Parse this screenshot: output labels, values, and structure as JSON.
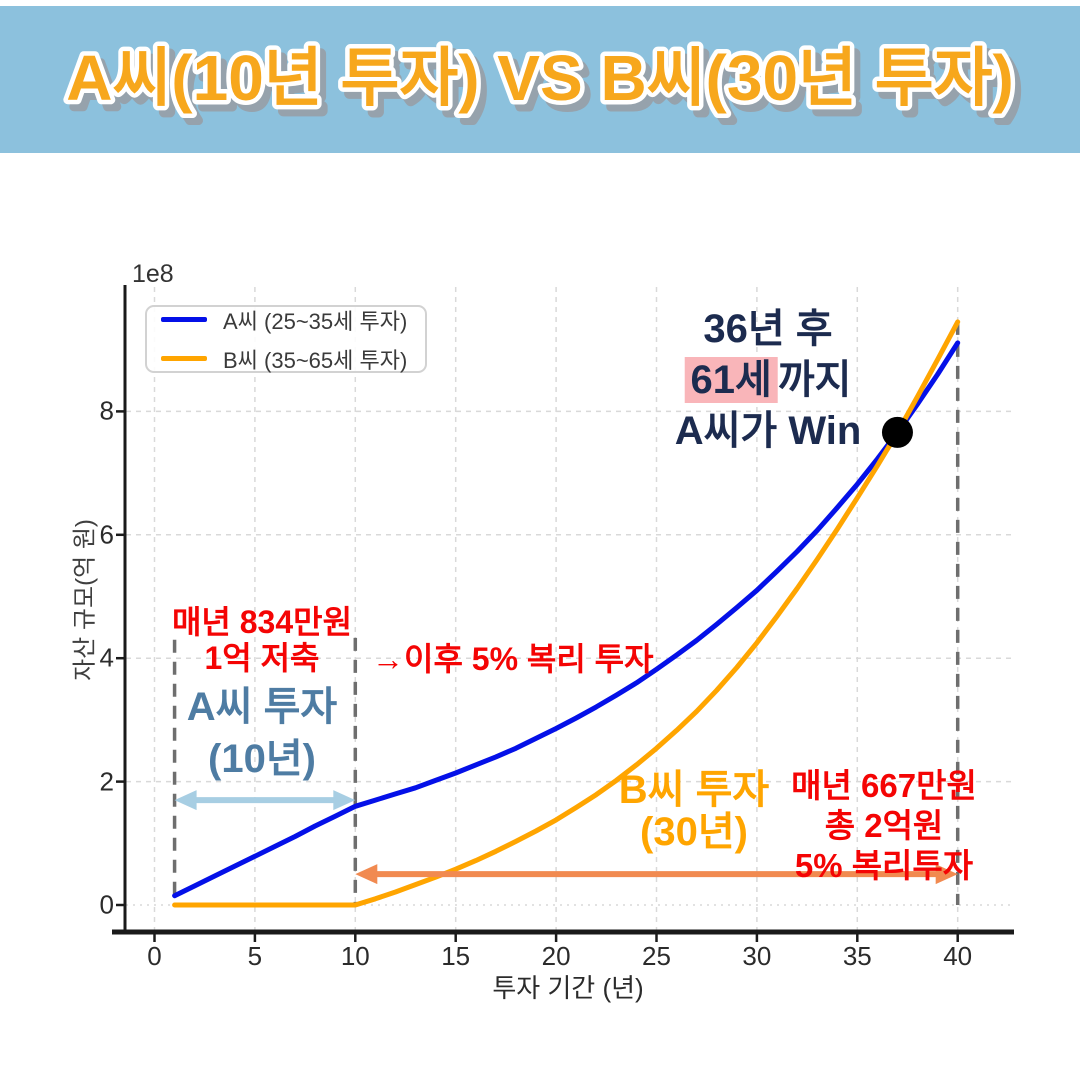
{
  "header": {
    "title": "A씨(10년 투자) VS B씨(30년 투자)",
    "bg_color": "#8cc1dd",
    "title_color": "#f7a71c",
    "title_outline_color": "#ffffff",
    "title_shadow_color": "#96a2ac"
  },
  "chart_data": {
    "type": "line",
    "xlabel": "투자 기간 (년)",
    "ylabel": "자산 규모(억 원)",
    "y_offset_label": "1e8",
    "x_ticks": [
      0,
      5,
      10,
      15,
      20,
      25,
      30,
      35,
      40
    ],
    "y_ticks": [
      0,
      2,
      4,
      6,
      8
    ],
    "xlim": [
      -1.4,
      42.7
    ],
    "ylim_1e8": [
      -0.45,
      10.05
    ],
    "grid": true,
    "legend_position": "upper-left",
    "x_start_year": 1,
    "series": [
      {
        "name": "A씨 (25~35세 투자)",
        "color": "#0410e8",
        "values_1e8": [
          0.15,
          0.31,
          0.47,
          0.63,
          0.79,
          0.95,
          1.11,
          1.28,
          1.44,
          1.6,
          1.7,
          1.8,
          1.9,
          2.02,
          2.14,
          2.27,
          2.4,
          2.54,
          2.7,
          2.86,
          3.03,
          3.21,
          3.4,
          3.6,
          3.82,
          4.05,
          4.29,
          4.55,
          4.82,
          5.1,
          5.41,
          5.73,
          6.07,
          6.44,
          6.82,
          7.23,
          7.66,
          8.12,
          8.6,
          9.11
        ]
      },
      {
        "name": "B씨 (35~65세 투자)",
        "color": "#ffa500",
        "values_1e8": [
          0,
          0,
          0,
          0,
          0,
          0,
          0,
          0,
          0,
          0,
          0.1,
          0.21,
          0.33,
          0.45,
          0.58,
          0.72,
          0.87,
          1.03,
          1.2,
          1.38,
          1.58,
          1.79,
          2.02,
          2.27,
          2.54,
          2.83,
          3.14,
          3.48,
          3.85,
          4.25,
          4.68,
          5.13,
          5.6,
          6.09,
          6.6,
          7.12,
          7.66,
          8.24,
          8.84,
          9.45
        ]
      }
    ],
    "crossover_point": {
      "x_year": 37,
      "y_1e8": 7.66,
      "marker_color": "#000000"
    },
    "reference_lines": [
      {
        "x_year": 1,
        "y_top_1e8": 4.3,
        "color": "#6e6e6e"
      },
      {
        "x_year": 10,
        "y_top_1e8": 4.33,
        "color": "#6e6e6e"
      },
      {
        "x_year": 40,
        "y_top_1e8": 9.45,
        "color": "#6e6e6e"
      }
    ],
    "period_arrows": [
      {
        "id": "a",
        "x1_year": 1,
        "x2_year": 10,
        "y_1e8": 1.7,
        "color": "#a7cee3"
      },
      {
        "id": "b",
        "x1_year": 10,
        "x2_year": 40,
        "y_1e8": 0.5,
        "color": "#f18a50"
      }
    ]
  },
  "annotations": {
    "savings_a": {
      "line1": "매년 834만원",
      "line2": "1억 저축",
      "color": "#f40404"
    },
    "invest_a": {
      "line1": "A씨 투자",
      "line2": "(10년)",
      "color": "#4e7ca3"
    },
    "after_invest": {
      "text": "→이후 5% 복리 투자",
      "color": "#f40404"
    },
    "win": {
      "line1": "36년 후",
      "line2_highlight": "61세",
      "line2_rest": "까지",
      "line3": "A씨가 Win",
      "color": "#1c2b4f",
      "highlight_bg": "#f9b5b9"
    },
    "invest_b": {
      "line1": "B씨 투자",
      "line2": "(30년)",
      "color": "#ffa500"
    },
    "savings_b": {
      "line1": "매년 667만원",
      "line2": "총 2억원",
      "line3": "5% 복리투자",
      "color": "#f40404"
    }
  }
}
